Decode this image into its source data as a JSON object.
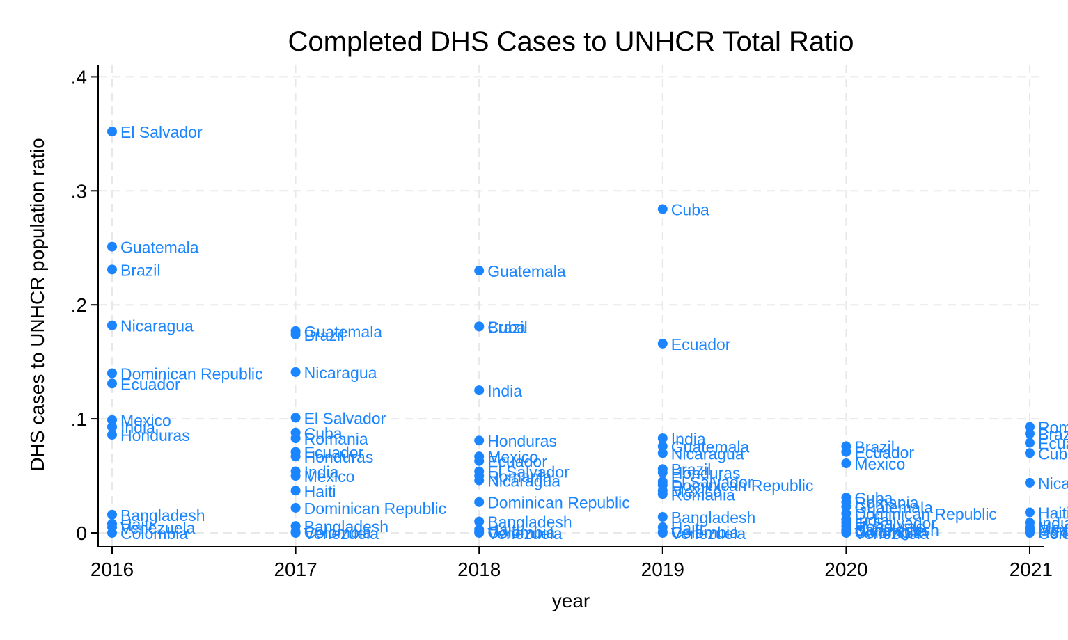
{
  "chart_data": {
    "type": "scatter",
    "title": "Completed DHS Cases to UNHCR Total Ratio",
    "xlabel": "year",
    "ylabel": "DHS cases to UNHCR population ratio",
    "xlim": [
      2015.92,
      2021.08
    ],
    "ylim": [
      -0.012,
      0.412
    ],
    "x_ticks": [
      2016,
      2017,
      2018,
      2019,
      2020,
      2021
    ],
    "y_ticks": [
      0,
      0.1,
      0.2,
      0.3,
      0.4
    ],
    "y_tick_labels": [
      "0",
      ".1",
      ".2",
      ".3",
      ".4"
    ],
    "grid": true,
    "legend": "none",
    "marker_color": "#1a85ff",
    "series": [
      {
        "points": [
          {
            "x": 2016,
            "y": 0.352,
            "label": "El Salvador"
          },
          {
            "x": 2016,
            "y": 0.251,
            "label": "Guatemala"
          },
          {
            "x": 2016,
            "y": 0.231,
            "label": "Brazil"
          },
          {
            "x": 2016,
            "y": 0.182,
            "label": "Nicaragua"
          },
          {
            "x": 2016,
            "y": 0.14,
            "label": "Dominican Republic"
          },
          {
            "x": 2016,
            "y": 0.131,
            "label": "Ecuador"
          },
          {
            "x": 2016,
            "y": 0.099,
            "label": "Mexico"
          },
          {
            "x": 2016,
            "y": 0.093,
            "label": "India"
          },
          {
            "x": 2016,
            "y": 0.086,
            "label": "Honduras"
          },
          {
            "x": 2016,
            "y": 0.016,
            "label": "Bangladesh"
          },
          {
            "x": 2016,
            "y": 0.008,
            "label": "Haiti"
          },
          {
            "x": 2016,
            "y": 0.005,
            "label": "Venezuela"
          },
          {
            "x": 2016,
            "y": 0.0,
            "label": "Colombia"
          },
          {
            "x": 2017,
            "y": 0.177,
            "label": "Guatemala"
          },
          {
            "x": 2017,
            "y": 0.174,
            "label": "Brazil"
          },
          {
            "x": 2017,
            "y": 0.141,
            "label": "Nicaragua"
          },
          {
            "x": 2017,
            "y": 0.101,
            "label": "El Salvador"
          },
          {
            "x": 2017,
            "y": 0.088,
            "label": "Cuba"
          },
          {
            "x": 2017,
            "y": 0.083,
            "label": "Romania"
          },
          {
            "x": 2017,
            "y": 0.071,
            "label": "Ecuador"
          },
          {
            "x": 2017,
            "y": 0.067,
            "label": "Honduras"
          },
          {
            "x": 2017,
            "y": 0.054,
            "label": "India"
          },
          {
            "x": 2017,
            "y": 0.05,
            "label": "Mexico"
          },
          {
            "x": 2017,
            "y": 0.037,
            "label": "Haiti"
          },
          {
            "x": 2017,
            "y": 0.022,
            "label": "Dominican Republic"
          },
          {
            "x": 2017,
            "y": 0.006,
            "label": "Bangladesh"
          },
          {
            "x": 2017,
            "y": 0.001,
            "label": "Colombia"
          },
          {
            "x": 2017,
            "y": 0.0,
            "label": "Venezuela"
          },
          {
            "x": 2018,
            "y": 0.23,
            "label": "Guatemala"
          },
          {
            "x": 2018,
            "y": 0.181,
            "label": "Brazil"
          },
          {
            "x": 2018,
            "y": 0.181,
            "label": "Cuba"
          },
          {
            "x": 2018,
            "y": 0.125,
            "label": "India"
          },
          {
            "x": 2018,
            "y": 0.081,
            "label": "Honduras"
          },
          {
            "x": 2018,
            "y": 0.067,
            "label": "Mexico"
          },
          {
            "x": 2018,
            "y": 0.063,
            "label": "Ecuador"
          },
          {
            "x": 2018,
            "y": 0.054,
            "label": "El Salvador"
          },
          {
            "x": 2018,
            "y": 0.05,
            "label": "Romania"
          },
          {
            "x": 2018,
            "y": 0.046,
            "label": "Nicaragua"
          },
          {
            "x": 2018,
            "y": 0.027,
            "label": "Dominican Republic"
          },
          {
            "x": 2018,
            "y": 0.01,
            "label": "Bangladesh"
          },
          {
            "x": 2018,
            "y": 0.003,
            "label": "Haiti"
          },
          {
            "x": 2018,
            "y": 0.001,
            "label": "Colombia"
          },
          {
            "x": 2018,
            "y": 0.0,
            "label": "Venezuela"
          },
          {
            "x": 2019,
            "y": 0.284,
            "label": "Cuba"
          },
          {
            "x": 2019,
            "y": 0.166,
            "label": "Ecuador"
          },
          {
            "x": 2019,
            "y": 0.083,
            "label": "India"
          },
          {
            "x": 2019,
            "y": 0.076,
            "label": "Guatemala"
          },
          {
            "x": 2019,
            "y": 0.07,
            "label": "Nicaragua"
          },
          {
            "x": 2019,
            "y": 0.056,
            "label": "Brazil"
          },
          {
            "x": 2019,
            "y": 0.053,
            "label": "Honduras"
          },
          {
            "x": 2019,
            "y": 0.045,
            "label": "El Salvador"
          },
          {
            "x": 2019,
            "y": 0.042,
            "label": "Dominican Republic"
          },
          {
            "x": 2019,
            "y": 0.037,
            "label": "Mexico"
          },
          {
            "x": 2019,
            "y": 0.034,
            "label": "Romania"
          },
          {
            "x": 2019,
            "y": 0.014,
            "label": "Bangladesh"
          },
          {
            "x": 2019,
            "y": 0.005,
            "label": "Haiti"
          },
          {
            "x": 2019,
            "y": 0.001,
            "label": "Colombia"
          },
          {
            "x": 2019,
            "y": 0.0,
            "label": "Venezuela"
          },
          {
            "x": 2020,
            "y": 0.076,
            "label": "Brazil"
          },
          {
            "x": 2020,
            "y": 0.071,
            "label": "Ecuador"
          },
          {
            "x": 2020,
            "y": 0.061,
            "label": "Mexico"
          },
          {
            "x": 2020,
            "y": 0.031,
            "label": "Cuba"
          },
          {
            "x": 2020,
            "y": 0.027,
            "label": "Romania"
          },
          {
            "x": 2020,
            "y": 0.023,
            "label": "Guatemala"
          },
          {
            "x": 2020,
            "y": 0.017,
            "label": "Dominican Republic"
          },
          {
            "x": 2020,
            "y": 0.012,
            "label": "India"
          },
          {
            "x": 2020,
            "y": 0.009,
            "label": "El Salvador"
          },
          {
            "x": 2020,
            "y": 0.006,
            "label": "Honduras"
          },
          {
            "x": 2020,
            "y": 0.003,
            "label": "Bangladesh"
          },
          {
            "x": 2020,
            "y": 0.002,
            "label": "Nicaragua"
          },
          {
            "x": 2020,
            "y": 0.001,
            "label": "Colombia"
          },
          {
            "x": 2020,
            "y": 0.0,
            "label": "Venezuela"
          },
          {
            "x": 2021,
            "y": 0.093,
            "label": "Romania"
          },
          {
            "x": 2021,
            "y": 0.087,
            "label": "Brazil"
          },
          {
            "x": 2021,
            "y": 0.079,
            "label": "Ecuador"
          },
          {
            "x": 2021,
            "y": 0.07,
            "label": "Cuba"
          },
          {
            "x": 2021,
            "y": 0.044,
            "label": "Nicaragua"
          },
          {
            "x": 2021,
            "y": 0.018,
            "label": "Haiti"
          },
          {
            "x": 2021,
            "y": 0.009,
            "label": "India"
          },
          {
            "x": 2021,
            "y": 0.005,
            "label": "Mexico"
          },
          {
            "x": 2021,
            "y": 0.003,
            "label": "Guatemala"
          },
          {
            "x": 2021,
            "y": 0.001,
            "label": "Honduras"
          },
          {
            "x": 2021,
            "y": 0.0,
            "label": "Colombia"
          }
        ]
      }
    ]
  }
}
